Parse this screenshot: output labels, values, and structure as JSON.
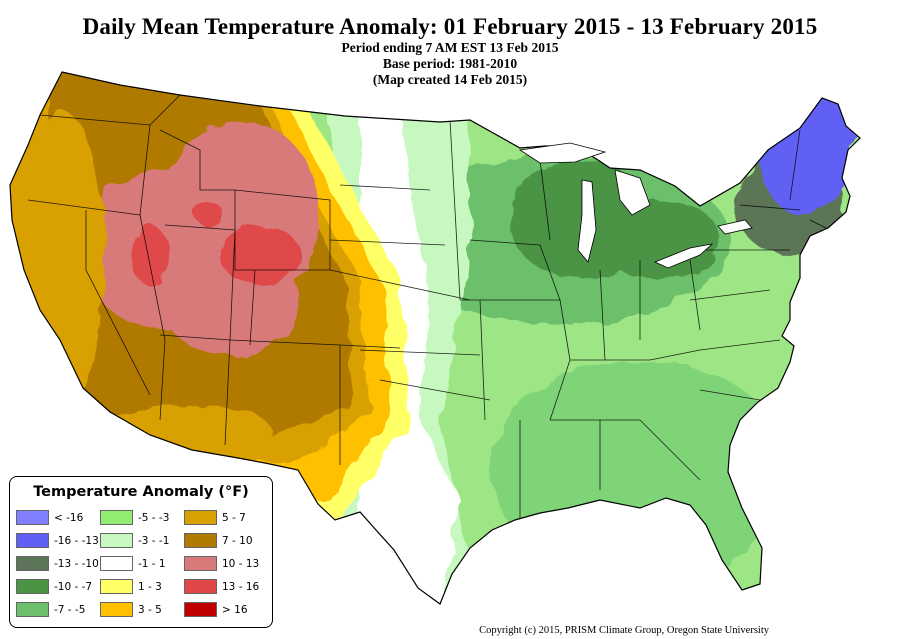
{
  "header": {
    "title": "Daily Mean Temperature Anomaly: 01 February 2015 - 13 February 2015",
    "line1": "Period ending 7 AM EST 13 Feb 2015",
    "line2": "Base period: 1981-2010",
    "line3": "(Map created 14 Feb 2015)"
  },
  "legend": {
    "title": "Temperature Anomaly (°F)",
    "items": [
      {
        "label": "< -16",
        "color": "#8080ff"
      },
      {
        "label": "-16 - -13",
        "color": "#6060f5"
      },
      {
        "label": "-13 - -10",
        "color": "#5c7457"
      },
      {
        "label": "-10 - -7",
        "color": "#4b9444"
      },
      {
        "label": "-7 - -5",
        "color": "#6cc06c"
      },
      {
        "label": "-5 - -3",
        "color": "#92ee72"
      },
      {
        "label": "-3 - -1",
        "color": "#c6f8c0"
      },
      {
        "label": "-1 - 1",
        "color": "#ffffff"
      },
      {
        "label": "1 - 3",
        "color": "#ffff66"
      },
      {
        "label": "3 - 5",
        "color": "#ffc000"
      },
      {
        "label": "5 - 7",
        "color": "#d8a000"
      },
      {
        "label": "7 - 10",
        "color": "#b07a00"
      },
      {
        "label": "10 - 13",
        "color": "#d97a7a"
      },
      {
        "label": "13 - 16",
        "color": "#e04848"
      },
      {
        "label": "> 16",
        "color": "#c00000"
      }
    ]
  },
  "credit": "Copyright (c) 2015, PRISM Climate Group, Oregon State University"
}
